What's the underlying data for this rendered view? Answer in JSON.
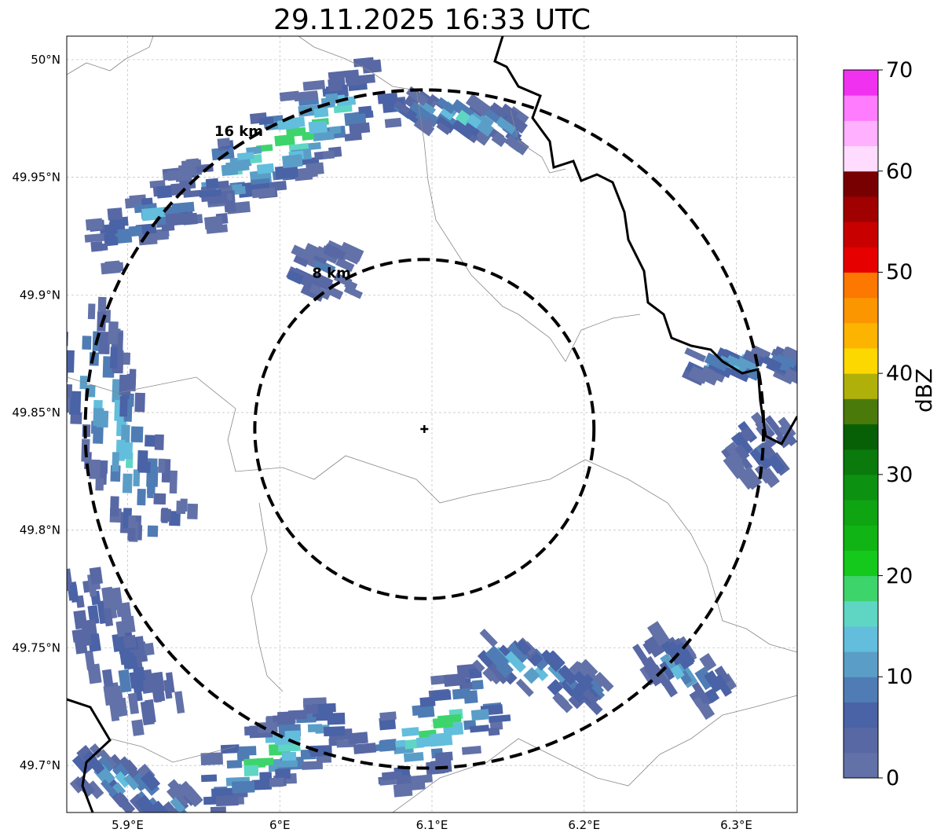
{
  "title": "29.11.2025 16:33 UTC",
  "map": {
    "lon_range": [
      5.86,
      6.34
    ],
    "lat_range": [
      49.68,
      50.01
    ],
    "x_ticks": [
      "5.9°E",
      "6°E",
      "6.1°E",
      "6.2°E",
      "6.3°E"
    ],
    "y_ticks": [
      "50°N",
      "49.95°N",
      "49.9°N",
      "49.85°N",
      "49.8°N",
      "49.75°N",
      "49.7°N"
    ],
    "radar_site": {
      "lon": 6.095,
      "lat": 49.843
    },
    "range_rings": [
      {
        "label": "8 km",
        "radius_km": 8
      },
      {
        "label": "16 km",
        "radius_km": 16
      }
    ]
  },
  "colorbar": {
    "label": "dBZ",
    "ticks": [
      "0",
      "10",
      "20",
      "30",
      "40",
      "50",
      "60",
      "70"
    ],
    "min": 0,
    "max": 70,
    "step": 2.5,
    "colors": [
      "#6272a8",
      "#5868a4",
      "#4a62a6",
      "#4f7cb4",
      "#5a9ec8",
      "#62bedc",
      "#5fd6c4",
      "#3ed46c",
      "#14c81c",
      "#10b414",
      "#0ea412",
      "#0c9210",
      "#0a7a0c",
      "#076006",
      "#4a7a0a",
      "#b0b00a",
      "#fcd800",
      "#fcb400",
      "#fc9600",
      "#fc7800",
      "#e60000",
      "#c80000",
      "#a00000",
      "#780000",
      "#ffdcff",
      "#ffb0ff",
      "#ff7cff",
      "#f032f0"
    ]
  },
  "echo_clusters": [
    {
      "from": [
        5.94,
        49.94
      ],
      "to": [
        6.07,
        49.99
      ],
      "width": 0.012,
      "peak": 22
    },
    {
      "from": [
        5.88,
        49.92
      ],
      "to": [
        5.96,
        49.95
      ],
      "width": 0.008,
      "peak": 12
    },
    {
      "from": [
        6.08,
        49.98
      ],
      "to": [
        6.16,
        49.97
      ],
      "width": 0.005,
      "peak": 18
    },
    {
      "from": [
        6.01,
        49.91
      ],
      "to": [
        6.05,
        49.91
      ],
      "width": 0.007,
      "peak": 9
    },
    {
      "from": [
        5.86,
        49.89
      ],
      "to": [
        5.92,
        49.8
      ],
      "width": 0.012,
      "peak": 18
    },
    {
      "from": [
        5.86,
        49.78
      ],
      "to": [
        5.92,
        49.72
      ],
      "width": 0.01,
      "peak": 10
    },
    {
      "from": [
        5.87,
        49.7
      ],
      "to": [
        5.94,
        49.68
      ],
      "width": 0.006,
      "peak": 17
    },
    {
      "from": [
        5.95,
        49.69
      ],
      "to": [
        6.04,
        49.72
      ],
      "width": 0.009,
      "peak": 22
    },
    {
      "from": [
        6.06,
        49.7
      ],
      "to": [
        6.14,
        49.73
      ],
      "width": 0.012,
      "peak": 21
    },
    {
      "from": [
        6.13,
        49.75
      ],
      "to": [
        6.21,
        49.73
      ],
      "width": 0.007,
      "peak": 17
    },
    {
      "from": [
        6.24,
        49.75
      ],
      "to": [
        6.29,
        49.73
      ],
      "width": 0.007,
      "peak": 14
    },
    {
      "from": [
        6.3,
        49.84
      ],
      "to": [
        6.33,
        49.83
      ],
      "width": 0.01,
      "peak": 9
    },
    {
      "from": [
        6.27,
        49.87
      ],
      "to": [
        6.34,
        49.87
      ],
      "width": 0.004,
      "peak": 16
    }
  ]
}
